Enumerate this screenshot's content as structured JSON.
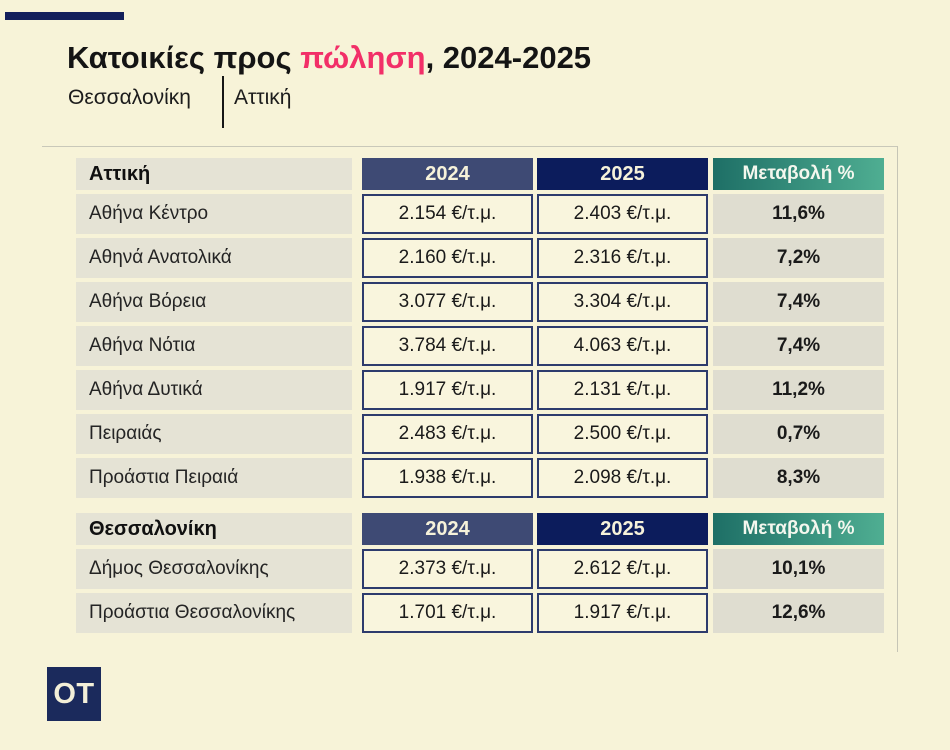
{
  "header": {
    "title_prefix": "Κατοικίες προς ",
    "title_highlight": "πώληση",
    "title_suffix": ", 2024-2025",
    "tabs": [
      {
        "label": "Θεσσαλονίκη"
      },
      {
        "label": "Αττική"
      }
    ]
  },
  "colors": {
    "background": "#f7f3d8",
    "accent_navy": "#131f5b",
    "highlight_pink": "#f22f68",
    "header_2024_bg": "#3e4a74",
    "header_2025_bg": "#0c1c5c",
    "header_change_gradient_start": "#1e6f66",
    "header_change_gradient_end": "#4fae92",
    "row_label_bg": "#e5e3d5",
    "change_cell_bg": "#dfddd0",
    "value_cell_bg": "#f9f5dd",
    "value_cell_border": "#2d3b6d"
  },
  "chart_data": {
    "type": "table",
    "title": "Κατοικίες προς πώληση, 2024-2025",
    "unit": "€/τ.μ.",
    "columns": [
      "",
      "2024",
      "2025",
      "Μεταβολή %"
    ],
    "sections": [
      {
        "name": "Αττική",
        "rows": [
          {
            "label": "Αθήνα Κέντρο",
            "v2024": "2.154 €/τ.μ.",
            "v2025": "2.403 €/τ.μ.",
            "change": "11,6%"
          },
          {
            "label": "Αθηνά Ανατολικά",
            "v2024": "2.160 €/τ.μ.",
            "v2025": "2.316 €/τ.μ.",
            "change": "7,2%"
          },
          {
            "label": "Αθήνα Βόρεια",
            "v2024": "3.077 €/τ.μ.",
            "v2025": "3.304 €/τ.μ.",
            "change": "7,4%"
          },
          {
            "label": "Αθήνα Νότια",
            "v2024": "3.784 €/τ.μ.",
            "v2025": "4.063 €/τ.μ.",
            "change": "7,4%"
          },
          {
            "label": "Αθήνα Δυτικά",
            "v2024": "1.917 €/τ.μ.",
            "v2025": "2.131 €/τ.μ.",
            "change": "11,2%"
          },
          {
            "label": "Πειραιάς",
            "v2024": "2.483 €/τ.μ.",
            "v2025": "2.500 €/τ.μ.",
            "change": "0,7%"
          },
          {
            "label": "Προάστια Πειραιά",
            "v2024": "1.938 €/τ.μ.",
            "v2025": "2.098 €/τ.μ.",
            "change": "8,3%"
          }
        ]
      },
      {
        "name": "Θεσσαλονίκη",
        "rows": [
          {
            "label": "Δήμος Θεσσαλονίκης",
            "v2024": "2.373 €/τ.μ.",
            "v2025": "2.612 €/τ.μ.",
            "change": "10,1%"
          },
          {
            "label": "Προάστια Θεσσαλονίκης",
            "v2024": "1.701 €/τ.μ.",
            "v2025": "1.917 €/τ.μ.",
            "change": "12,6%"
          }
        ]
      }
    ]
  },
  "footer": {
    "logo_text": "OT"
  }
}
